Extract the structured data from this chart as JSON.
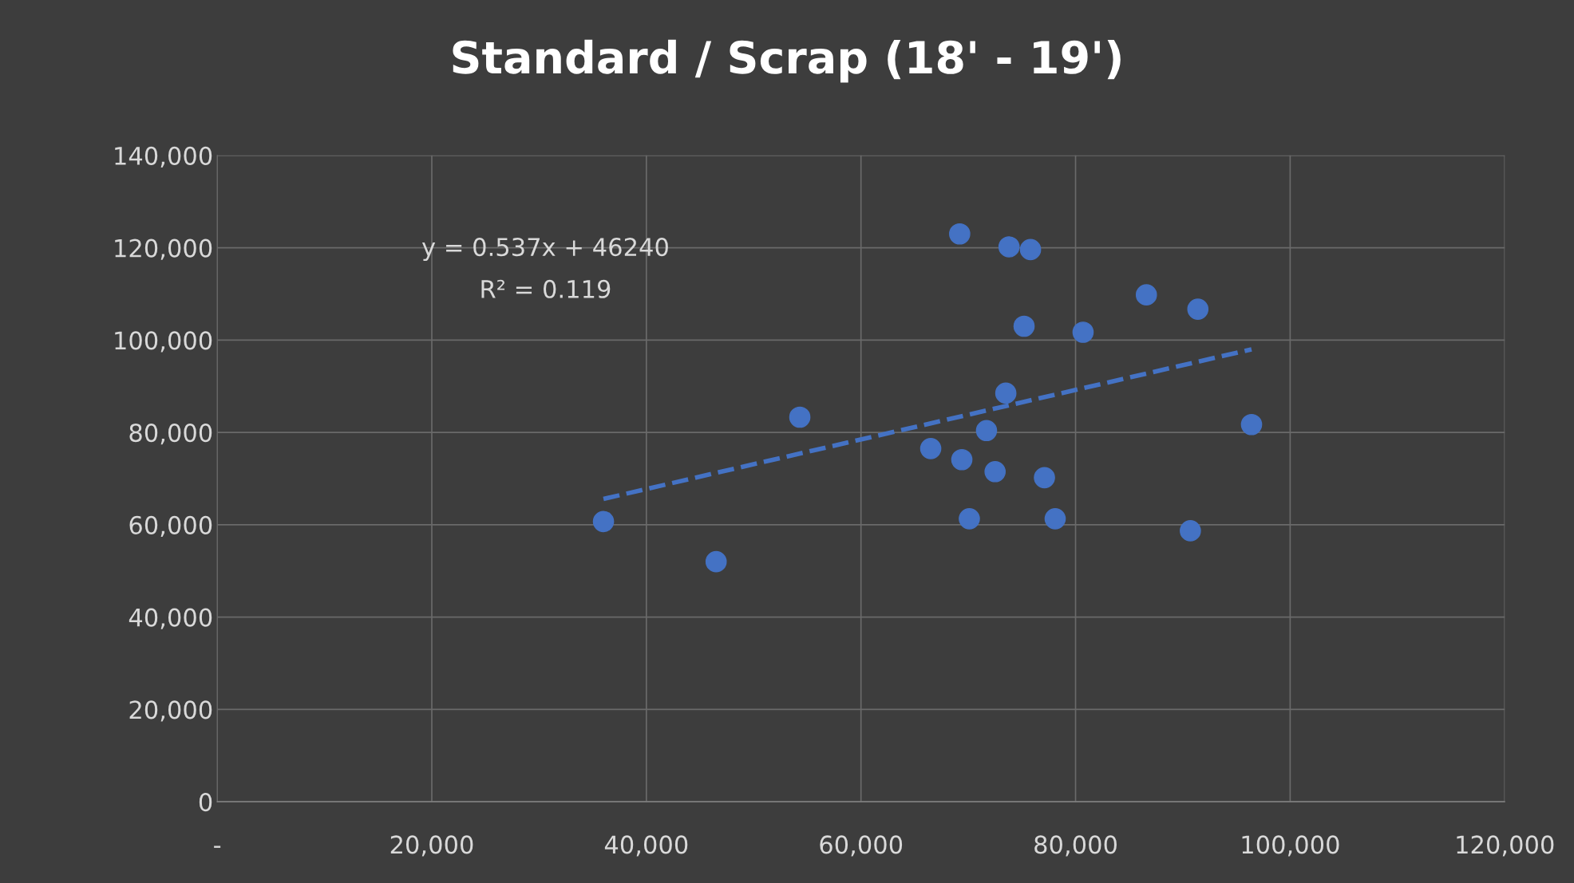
{
  "chart_data": {
    "type": "scatter",
    "title": "Standard / Scrap (18' - 19')",
    "series": [
      {
        "color": "#4472c4",
        "marker": "circle",
        "x": [
          36000,
          46500,
          54300,
          66500,
          69200,
          69400,
          70100,
          71700,
          72500,
          73500,
          73800,
          75200,
          75800,
          77100,
          78100,
          80700,
          86600,
          90700,
          91400,
          96400
        ],
        "values": [
          60700,
          52000,
          83300,
          76500,
          123000,
          74100,
          61300,
          80400,
          71500,
          88500,
          120200,
          103000,
          119600,
          70200,
          61300,
          101700,
          109800,
          58700,
          106700,
          81700
        ]
      },
      {
        "type": "line",
        "color": "#4472c4",
        "line_style": "dashed",
        "marker": "none",
        "x": [
          36000,
          96400
        ],
        "values": [
          65600,
          98000
        ]
      }
    ],
    "annotations": [
      "y = 0.537x + 46240",
      "R² = 0.119"
    ],
    "xlim": [
      0,
      120000
    ],
    "xticks": [
      {
        "value": 0,
        "label": "-"
      },
      {
        "value": 20000,
        "label": "20,000"
      },
      {
        "value": 40000,
        "label": "40,000"
      },
      {
        "value": 60000,
        "label": "60,000"
      },
      {
        "value": 80000,
        "label": "80,000"
      },
      {
        "value": 100000,
        "label": "100,000"
      },
      {
        "value": 120000,
        "label": "120,000"
      }
    ],
    "ylim": [
      0,
      140000
    ],
    "yticks": [
      0,
      {
        "value": 20000,
        "label": "20,000"
      },
      {
        "value": 40000,
        "label": "40,000"
      },
      {
        "value": 60000,
        "label": "60,000"
      },
      {
        "value": 80000,
        "label": "80,000"
      },
      {
        "value": 100000,
        "label": "100,000"
      },
      {
        "value": 120000,
        "label": "120,000"
      },
      {
        "value": 140000,
        "label": "140,000"
      }
    ],
    "grid": true,
    "legend": false
  }
}
